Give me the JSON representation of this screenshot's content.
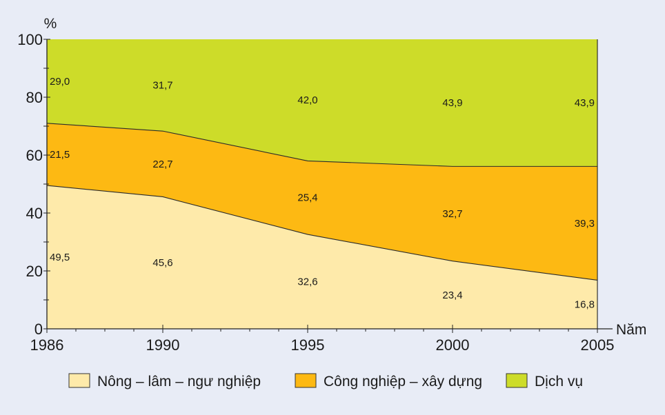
{
  "chart_data": {
    "type": "area",
    "stacked": true,
    "percent_stacked": true,
    "title": "",
    "xlabel": "Năm",
    "ylabel": "%",
    "x": [
      1986,
      1990,
      1995,
      2000,
      2005
    ],
    "x_ticks": [
      "1986",
      "1990",
      "1995",
      "2000",
      "2005"
    ],
    "y_ticks": [
      "0",
      "20",
      "40",
      "60",
      "80",
      "100"
    ],
    "ylim": [
      0,
      100
    ],
    "grid": false,
    "legend_position": "bottom",
    "series": [
      {
        "name": "Nông – lâm – ngư nghiệp",
        "color": "#feeaaa",
        "values": [
          49.5,
          45.6,
          32.6,
          23.4,
          16.8
        ],
        "labels": [
          "49,5",
          "45,6",
          "32,6",
          "23,4",
          "16,8"
        ]
      },
      {
        "name": "Công nghiệp – xây dựng",
        "color": "#fdb913",
        "values": [
          21.5,
          22.7,
          25.4,
          32.7,
          39.3
        ],
        "labels": [
          "21,5",
          "22,7",
          "25,4",
          "32,7",
          "39,3"
        ]
      },
      {
        "name": "Dịch vụ",
        "color": "#cddc29",
        "values": [
          29.0,
          31.7,
          42.0,
          43.9,
          43.9
        ],
        "labels": [
          "29,0",
          "31,7",
          "42,0",
          "43,9",
          "43,9"
        ]
      }
    ]
  }
}
